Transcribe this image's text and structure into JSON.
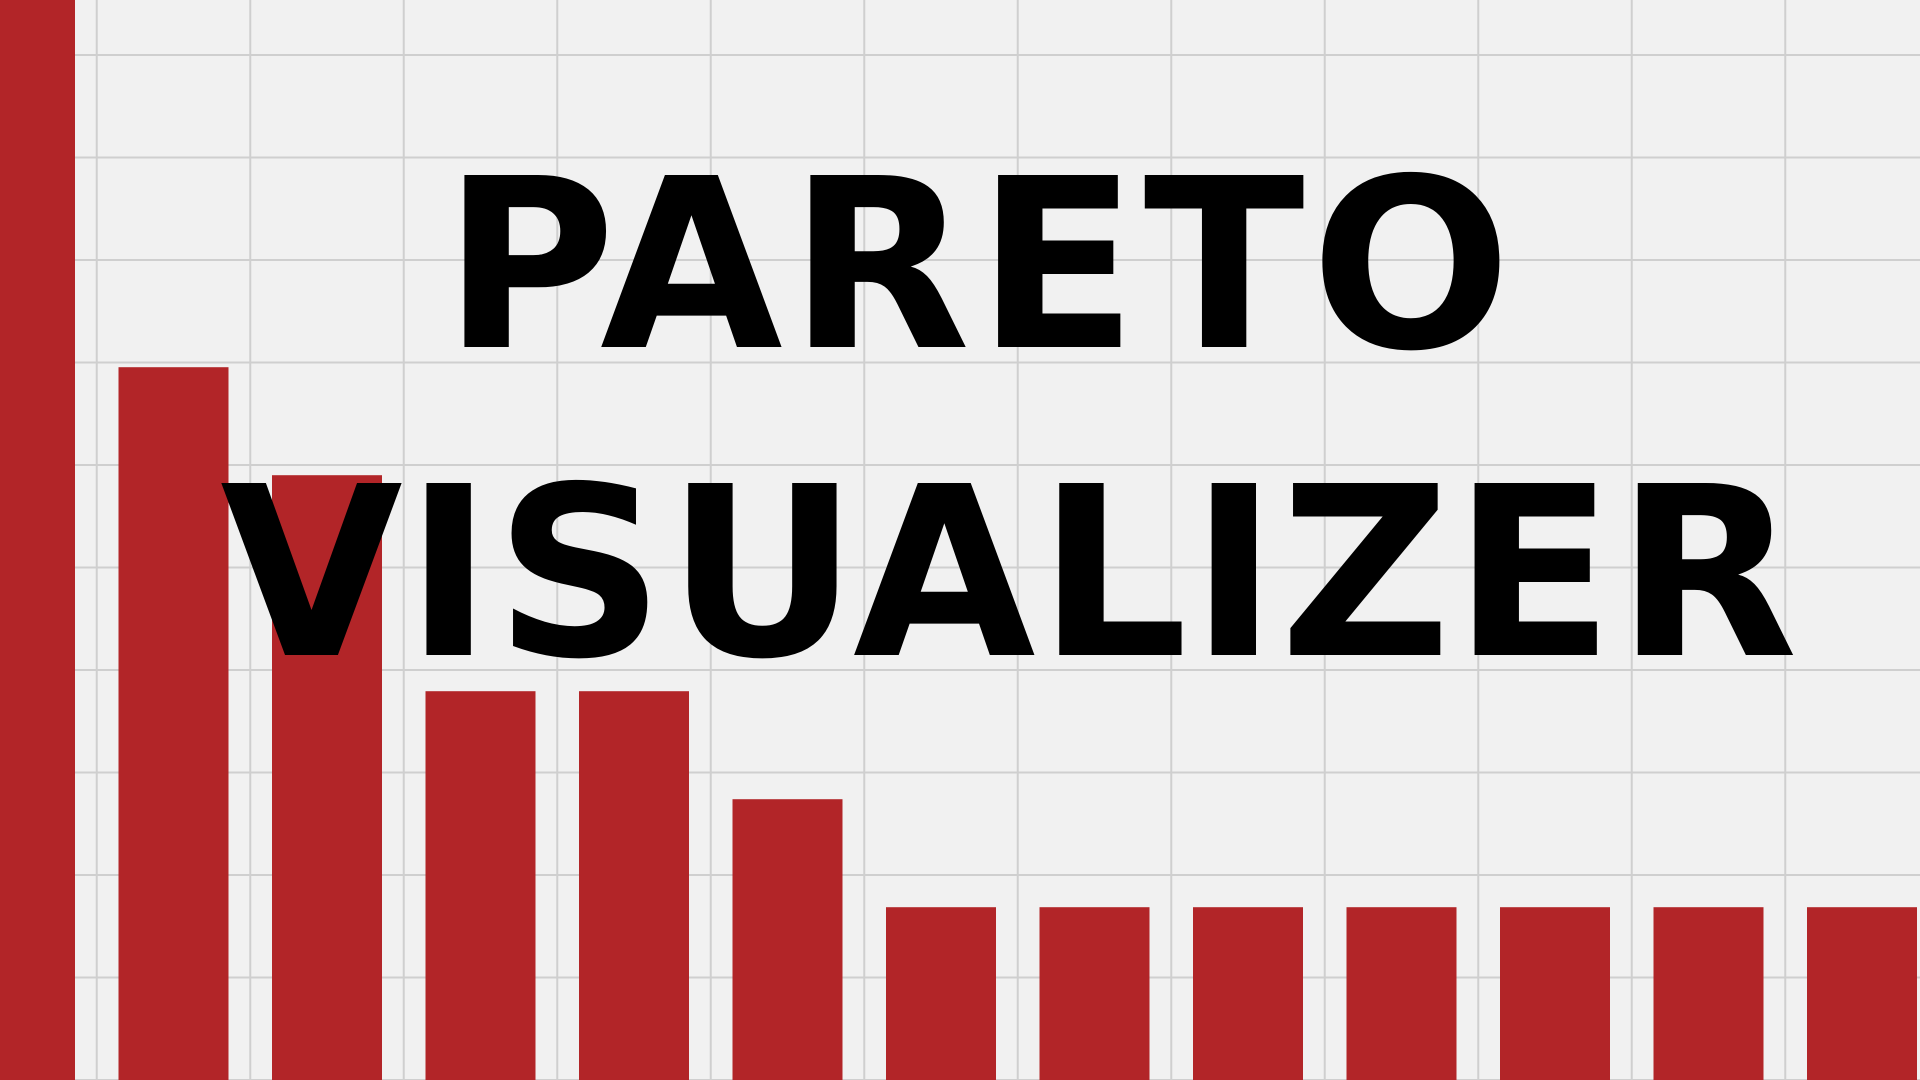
{
  "colors": {
    "background": "#f1f1f1",
    "grid": "#cfcfcf",
    "bar": "#b22528",
    "title": "#000000"
  },
  "title": {
    "line1": "PARETO",
    "line2": "VISUALIZER"
  },
  "chart_data": {
    "type": "bar",
    "categories": [
      "",
      "",
      "",
      "",
      "",
      "",
      "",
      "",
      "",
      "",
      "",
      "",
      ""
    ],
    "values": [
      100,
      66,
      56,
      36,
      36,
      26,
      16,
      16,
      16,
      16,
      16,
      16,
      16
    ],
    "ylim": [
      0,
      100
    ],
    "grid": true,
    "axes_visible": false
  }
}
